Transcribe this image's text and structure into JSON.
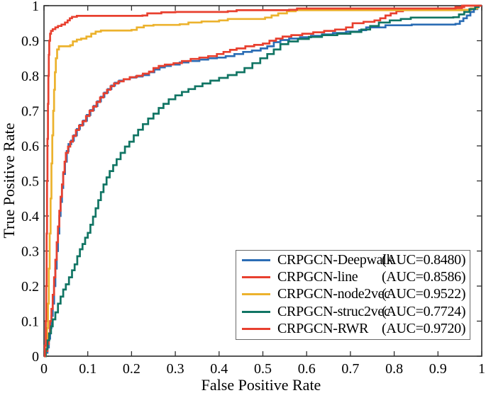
{
  "figure": {
    "background": "#ffffff",
    "axis_color": "#2e2e2e",
    "legend_border_color": "#6a6a6a",
    "text_color": "#000000"
  },
  "chart_data": {
    "type": "line",
    "style": "roc-step-curves",
    "title": "",
    "xlabel": "False Positive Rate",
    "ylabel": "True Positive Rate",
    "xlim": [
      0,
      1
    ],
    "ylim": [
      0,
      1
    ],
    "grid": false,
    "x_ticks": [
      "0",
      "0.1",
      "0.2",
      "0.3",
      "0.4",
      "0.5",
      "0.6",
      "0.7",
      "0.8",
      "0.9",
      "1"
    ],
    "y_ticks": [
      "0",
      "0.1",
      "0.2",
      "0.3",
      "0.4",
      "0.5",
      "0.6",
      "0.7",
      "0.8",
      "0.9",
      "1"
    ],
    "legend": {
      "position": "lower right"
    },
    "series": [
      {
        "name": "CRPGCN-Deepwalk",
        "auc": "(AUC=0.8480)",
        "color": "#2B6DB5",
        "points": [
          [
            0,
            0
          ],
          [
            0.004,
            0.01
          ],
          [
            0.008,
            0.025
          ],
          [
            0.011,
            0.05
          ],
          [
            0.014,
            0.08
          ],
          [
            0.017,
            0.115
          ],
          [
            0.02,
            0.15
          ],
          [
            0.023,
            0.2
          ],
          [
            0.026,
            0.25
          ],
          [
            0.029,
            0.3
          ],
          [
            0.032,
            0.35
          ],
          [
            0.035,
            0.4
          ],
          [
            0.038,
            0.44
          ],
          [
            0.041,
            0.48
          ],
          [
            0.044,
            0.52
          ],
          [
            0.048,
            0.555
          ],
          [
            0.052,
            0.585
          ],
          [
            0.056,
            0.605
          ],
          [
            0.062,
            0.615
          ],
          [
            0.068,
            0.63
          ],
          [
            0.075,
            0.648
          ],
          [
            0.082,
            0.66
          ],
          [
            0.09,
            0.672
          ],
          [
            0.098,
            0.688
          ],
          [
            0.106,
            0.702
          ],
          [
            0.114,
            0.714
          ],
          [
            0.122,
            0.727
          ],
          [
            0.13,
            0.74
          ],
          [
            0.138,
            0.752
          ],
          [
            0.146,
            0.762
          ],
          [
            0.154,
            0.772
          ],
          [
            0.162,
            0.78
          ],
          [
            0.172,
            0.786
          ],
          [
            0.182,
            0.79
          ],
          [
            0.196,
            0.795
          ],
          [
            0.21,
            0.798
          ],
          [
            0.225,
            0.802
          ],
          [
            0.24,
            0.81
          ],
          [
            0.252,
            0.818
          ],
          [
            0.264,
            0.824
          ],
          [
            0.276,
            0.828
          ],
          [
            0.29,
            0.832
          ],
          [
            0.31,
            0.838
          ],
          [
            0.33,
            0.842
          ],
          [
            0.355,
            0.846
          ],
          [
            0.375,
            0.85
          ],
          [
            0.395,
            0.852
          ],
          [
            0.415,
            0.856
          ],
          [
            0.435,
            0.862
          ],
          [
            0.455,
            0.868
          ],
          [
            0.475,
            0.872
          ],
          [
            0.495,
            0.878
          ],
          [
            0.51,
            0.884
          ],
          [
            0.525,
            0.896
          ],
          [
            0.54,
            0.902
          ],
          [
            0.56,
            0.906
          ],
          [
            0.585,
            0.91
          ],
          [
            0.61,
            0.914
          ],
          [
            0.635,
            0.918
          ],
          [
            0.66,
            0.922
          ],
          [
            0.69,
            0.926
          ],
          [
            0.72,
            0.93
          ],
          [
            0.736,
            0.938
          ],
          [
            0.78,
            0.944
          ],
          [
            0.84,
            0.946
          ],
          [
            0.94,
            0.948
          ],
          [
            0.95,
            0.956
          ],
          [
            0.958,
            0.964
          ],
          [
            0.966,
            0.972
          ],
          [
            0.974,
            0.982
          ],
          [
            0.982,
            0.99
          ],
          [
            0.99,
            1
          ],
          [
            1,
            1
          ]
        ]
      },
      {
        "name": "CRPGCN-line",
        "auc": "(AUC=0.8586)",
        "color": "#E8402F",
        "points": [
          [
            0,
            0
          ],
          [
            0.004,
            0.015
          ],
          [
            0.008,
            0.035
          ],
          [
            0.011,
            0.065
          ],
          [
            0.014,
            0.1
          ],
          [
            0.017,
            0.135
          ],
          [
            0.02,
            0.175
          ],
          [
            0.023,
            0.225
          ],
          [
            0.026,
            0.275
          ],
          [
            0.029,
            0.325
          ],
          [
            0.032,
            0.37
          ],
          [
            0.035,
            0.415
          ],
          [
            0.038,
            0.455
          ],
          [
            0.041,
            0.49
          ],
          [
            0.044,
            0.525
          ],
          [
            0.047,
            0.555
          ],
          [
            0.05,
            0.58
          ],
          [
            0.055,
            0.598
          ],
          [
            0.06,
            0.612
          ],
          [
            0.066,
            0.628
          ],
          [
            0.073,
            0.645
          ],
          [
            0.08,
            0.658
          ],
          [
            0.088,
            0.67
          ],
          [
            0.096,
            0.685
          ],
          [
            0.104,
            0.7
          ],
          [
            0.112,
            0.712
          ],
          [
            0.12,
            0.725
          ],
          [
            0.128,
            0.738
          ],
          [
            0.136,
            0.75
          ],
          [
            0.144,
            0.76
          ],
          [
            0.152,
            0.77
          ],
          [
            0.16,
            0.778
          ],
          [
            0.17,
            0.784
          ],
          [
            0.182,
            0.79
          ],
          [
            0.196,
            0.796
          ],
          [
            0.212,
            0.8
          ],
          [
            0.226,
            0.806
          ],
          [
            0.24,
            0.812
          ],
          [
            0.25,
            0.822
          ],
          [
            0.262,
            0.828
          ],
          [
            0.276,
            0.832
          ],
          [
            0.296,
            0.836
          ],
          [
            0.315,
            0.842
          ],
          [
            0.335,
            0.848
          ],
          [
            0.355,
            0.852
          ],
          [
            0.375,
            0.856
          ],
          [
            0.395,
            0.862
          ],
          [
            0.41,
            0.868
          ],
          [
            0.425,
            0.874
          ],
          [
            0.44,
            0.878
          ],
          [
            0.46,
            0.884
          ],
          [
            0.48,
            0.888
          ],
          [
            0.5,
            0.892
          ],
          [
            0.515,
            0.9
          ],
          [
            0.53,
            0.906
          ],
          [
            0.545,
            0.912
          ],
          [
            0.565,
            0.916
          ],
          [
            0.59,
            0.92
          ],
          [
            0.615,
            0.924
          ],
          [
            0.64,
            0.928
          ],
          [
            0.665,
            0.932
          ],
          [
            0.69,
            0.938
          ],
          [
            0.705,
            0.95
          ],
          [
            0.73,
            0.954
          ],
          [
            0.755,
            0.958
          ],
          [
            0.768,
            0.964
          ],
          [
            0.78,
            0.972
          ],
          [
            0.792,
            0.978
          ],
          [
            0.805,
            0.984
          ],
          [
            0.82,
            0.99
          ],
          [
            0.9,
            0.992
          ],
          [
            0.94,
            0.996
          ],
          [
            0.96,
            1
          ],
          [
            1,
            1
          ]
        ]
      },
      {
        "name": "CRPGCN-node2vec",
        "auc": "(AUC=0.9522)",
        "color": "#ECB22D",
        "points": [
          [
            0,
            0
          ],
          [
            0.004,
            0.02
          ],
          [
            0.007,
            0.08
          ],
          [
            0.009,
            0.15
          ],
          [
            0.011,
            0.25
          ],
          [
            0.013,
            0.35
          ],
          [
            0.015,
            0.45
          ],
          [
            0.017,
            0.55
          ],
          [
            0.019,
            0.63
          ],
          [
            0.021,
            0.7
          ],
          [
            0.023,
            0.76
          ],
          [
            0.025,
            0.81
          ],
          [
            0.027,
            0.85
          ],
          [
            0.03,
            0.875
          ],
          [
            0.034,
            0.884
          ],
          [
            0.06,
            0.887
          ],
          [
            0.066,
            0.898
          ],
          [
            0.075,
            0.903
          ],
          [
            0.085,
            0.906
          ],
          [
            0.097,
            0.912
          ],
          [
            0.108,
            0.92
          ],
          [
            0.118,
            0.926
          ],
          [
            0.13,
            0.929
          ],
          [
            0.2,
            0.931
          ],
          [
            0.212,
            0.938
          ],
          [
            0.228,
            0.943
          ],
          [
            0.25,
            0.945
          ],
          [
            0.31,
            0.947
          ],
          [
            0.33,
            0.952
          ],
          [
            0.36,
            0.955
          ],
          [
            0.4,
            0.958
          ],
          [
            0.42,
            0.962
          ],
          [
            0.505,
            0.966
          ],
          [
            0.52,
            0.972
          ],
          [
            0.535,
            0.978
          ],
          [
            0.555,
            0.984
          ],
          [
            0.575,
            0.987
          ],
          [
            0.96,
            0.988
          ],
          [
            0.975,
            0.992
          ],
          [
            0.99,
            1
          ],
          [
            1,
            1
          ]
        ]
      },
      {
        "name": "CRPGCN-struc2vec",
        "auc": "(AUC=0.7724)",
        "color": "#117564",
        "points": [
          [
            0,
            0
          ],
          [
            0.004,
            0.02
          ],
          [
            0.008,
            0.045
          ],
          [
            0.012,
            0.065
          ],
          [
            0.016,
            0.085
          ],
          [
            0.02,
            0.105
          ],
          [
            0.026,
            0.125
          ],
          [
            0.032,
            0.15
          ],
          [
            0.038,
            0.17
          ],
          [
            0.044,
            0.19
          ],
          [
            0.05,
            0.205
          ],
          [
            0.057,
            0.225
          ],
          [
            0.064,
            0.245
          ],
          [
            0.07,
            0.262
          ],
          [
            0.076,
            0.285
          ],
          [
            0.082,
            0.305
          ],
          [
            0.088,
            0.32
          ],
          [
            0.094,
            0.338
          ],
          [
            0.1,
            0.352
          ],
          [
            0.106,
            0.375
          ],
          [
            0.112,
            0.398
          ],
          [
            0.118,
            0.422
          ],
          [
            0.124,
            0.445
          ],
          [
            0.13,
            0.468
          ],
          [
            0.136,
            0.49
          ],
          [
            0.143,
            0.51
          ],
          [
            0.15,
            0.528
          ],
          [
            0.158,
            0.545
          ],
          [
            0.166,
            0.562
          ],
          [
            0.175,
            0.58
          ],
          [
            0.185,
            0.598
          ],
          [
            0.195,
            0.612
          ],
          [
            0.205,
            0.63
          ],
          [
            0.215,
            0.646
          ],
          [
            0.226,
            0.662
          ],
          [
            0.238,
            0.678
          ],
          [
            0.25,
            0.692
          ],
          [
            0.262,
            0.708
          ],
          [
            0.273,
            0.72
          ],
          [
            0.285,
            0.733
          ],
          [
            0.3,
            0.744
          ],
          [
            0.315,
            0.754
          ],
          [
            0.33,
            0.762
          ],
          [
            0.345,
            0.77
          ],
          [
            0.362,
            0.778
          ],
          [
            0.38,
            0.786
          ],
          [
            0.4,
            0.794
          ],
          [
            0.42,
            0.802
          ],
          [
            0.44,
            0.81
          ],
          [
            0.458,
            0.822
          ],
          [
            0.476,
            0.836
          ],
          [
            0.494,
            0.85
          ],
          [
            0.51,
            0.862
          ],
          [
            0.525,
            0.875
          ],
          [
            0.54,
            0.89
          ],
          [
            0.558,
            0.898
          ],
          [
            0.58,
            0.905
          ],
          [
            0.605,
            0.911
          ],
          [
            0.635,
            0.916
          ],
          [
            0.67,
            0.92
          ],
          [
            0.7,
            0.925
          ],
          [
            0.725,
            0.932
          ],
          [
            0.745,
            0.942
          ],
          [
            0.765,
            0.952
          ],
          [
            0.79,
            0.958
          ],
          [
            0.815,
            0.962
          ],
          [
            0.838,
            0.966
          ],
          [
            0.935,
            0.967
          ],
          [
            0.948,
            0.975
          ],
          [
            0.96,
            0.982
          ],
          [
            0.972,
            0.99
          ],
          [
            0.985,
            0.996
          ],
          [
            0.993,
            1
          ],
          [
            1,
            1
          ]
        ]
      },
      {
        "name": "CRPGCN-RWR",
        "auc": "(AUC=0.9720)",
        "color": "#E8402F",
        "points": [
          [
            0,
            0
          ],
          [
            0.002,
            0.03
          ],
          [
            0.004,
            0.1
          ],
          [
            0.005,
            0.2
          ],
          [
            0.006,
            0.35
          ],
          [
            0.007,
            0.5
          ],
          [
            0.008,
            0.62
          ],
          [
            0.009,
            0.72
          ],
          [
            0.01,
            0.8
          ],
          [
            0.011,
            0.86
          ],
          [
            0.012,
            0.9
          ],
          [
            0.014,
            0.92
          ],
          [
            0.016,
            0.928
          ],
          [
            0.02,
            0.933
          ],
          [
            0.026,
            0.938
          ],
          [
            0.032,
            0.942
          ],
          [
            0.04,
            0.946
          ],
          [
            0.048,
            0.952
          ],
          [
            0.054,
            0.958
          ],
          [
            0.059,
            0.964
          ],
          [
            0.064,
            0.968
          ],
          [
            0.075,
            0.971
          ],
          [
            0.225,
            0.972
          ],
          [
            0.236,
            0.978
          ],
          [
            0.268,
            0.981
          ],
          [
            0.3,
            0.982
          ],
          [
            0.42,
            0.984
          ],
          [
            0.44,
            0.987
          ],
          [
            0.56,
            0.988
          ],
          [
            0.578,
            0.992
          ],
          [
            0.94,
            0.993
          ],
          [
            0.955,
            1
          ],
          [
            1,
            1
          ]
        ]
      }
    ]
  }
}
